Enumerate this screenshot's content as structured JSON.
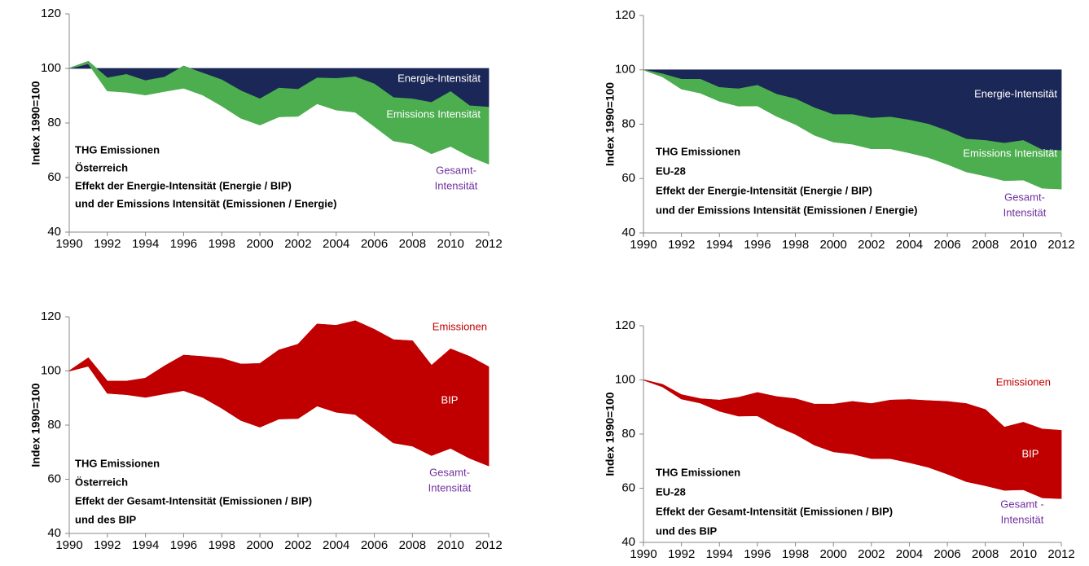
{
  "chart_data": [
    {
      "type": "band-area",
      "ylabel": "Index 1990=100",
      "text_lines": [
        "THG Emissionen",
        "Österreich",
        "Effekt der Energie-Intensität (Energie / BIP)",
        "und der Emissions Intensität (Emissionen / Energie)"
      ],
      "x": [
        1990,
        1991,
        1992,
        1993,
        1994,
        1995,
        1996,
        1997,
        1998,
        1999,
        2000,
        2001,
        2002,
        2003,
        2004,
        2005,
        2006,
        2007,
        2008,
        2009,
        2010,
        2011,
        2012
      ],
      "xlim": [
        1990,
        2012
      ],
      "xticks": [
        1990,
        1992,
        1994,
        1996,
        1998,
        2000,
        2002,
        2004,
        2006,
        2008,
        2010,
        2012
      ],
      "ylim": [
        40,
        120
      ],
      "yticks": [
        40,
        60,
        80,
        100,
        120
      ],
      "baseline": 100,
      "series": [
        {
          "name": "Energie-Intensität",
          "color": "#1b2757",
          "label_color": "#ffffff",
          "values": [
            100,
            102.5,
            96.5,
            97.8,
            95.5,
            96.8,
            100.8,
            98.3,
            95.8,
            91.8,
            88.8,
            92.8,
            92.3,
            96.5,
            96.3,
            96.9,
            94.3,
            89.3,
            88.8,
            87.5,
            91.5,
            86.3,
            85.8
          ]
        },
        {
          "name": "Emissions Intensität",
          "color": "#4cae4f",
          "label_color": "#ffffff",
          "values": [
            100,
            101.8,
            91.8,
            91.3,
            90.3,
            91.6,
            92.8,
            90.3,
            86.3,
            81.8,
            79.3,
            82.3,
            82.5,
            87.1,
            84.8,
            84.0,
            78.8,
            73.5,
            72.3,
            68.8,
            71.5,
            67.8,
            65.0
          ]
        }
      ],
      "labels": [
        {
          "lines": [
            "Gesamt-",
            "Intensität"
          ],
          "color": "#7030a0"
        }
      ]
    },
    {
      "type": "band-area",
      "ylabel": "Index 1990=100",
      "text_lines": [
        "THG Emissionen",
        "EU-28",
        "Effekt der Energie-Intensität (Energie / BIP)",
        "und der Emissions Intensität (Emissionen / Energie)"
      ],
      "x": [
        1990,
        1991,
        1992,
        1993,
        1994,
        1995,
        1996,
        1997,
        1998,
        1999,
        2000,
        2001,
        2002,
        2003,
        2004,
        2005,
        2006,
        2007,
        2008,
        2009,
        2010,
        2011,
        2012
      ],
      "xlim": [
        1990,
        2012
      ],
      "xticks": [
        1990,
        1992,
        1994,
        1996,
        1998,
        2000,
        2002,
        2004,
        2006,
        2008,
        2010,
        2012
      ],
      "ylim": [
        40,
        120
      ],
      "yticks": [
        40,
        60,
        80,
        100,
        120
      ],
      "baseline": 100,
      "series": [
        {
          "name": "Energie-Intensität",
          "color": "#1b2757",
          "label_color": "#ffffff",
          "values": [
            100,
            98.5,
            96.5,
            96.5,
            93.5,
            93,
            94.3,
            91,
            89.3,
            86,
            83.5,
            83.5,
            82.2,
            82.6,
            81.5,
            80,
            77.5,
            74.5,
            74,
            73,
            74,
            70.5,
            70.3
          ]
        },
        {
          "name": "Emissions Intensität",
          "color": "#4cae4f",
          "label_color": "#ffffff",
          "values": [
            100,
            97.5,
            93,
            91.5,
            88.5,
            86.7,
            86.8,
            83,
            80,
            76,
            73.5,
            72.7,
            71,
            71,
            69.5,
            67.8,
            65.3,
            62.5,
            61,
            59.3,
            59.5,
            56.5,
            56.2
          ]
        }
      ],
      "labels": [
        {
          "lines": [
            "Gesamt-",
            "Intensität"
          ],
          "color": "#7030a0"
        }
      ]
    },
    {
      "type": "band-area",
      "ylabel": "Index 1990=100",
      "text_lines": [
        "THG Emissionen",
        "Österreich",
        "Effekt der Gesamt-Intensität (Emissionen / BIP)",
        "und des BIP"
      ],
      "x": [
        1990,
        1991,
        1992,
        1993,
        1994,
        1995,
        1996,
        1997,
        1998,
        1999,
        2000,
        2001,
        2002,
        2003,
        2004,
        2005,
        2006,
        2007,
        2008,
        2009,
        2010,
        2011,
        2012
      ],
      "xlim": [
        1990,
        2012
      ],
      "xticks": [
        1990,
        1992,
        1994,
        1996,
        1998,
        2000,
        2002,
        2004,
        2006,
        2008,
        2010,
        2012
      ],
      "ylim": [
        40,
        120
      ],
      "yticks": [
        40,
        60,
        80,
        100,
        120
      ],
      "series": [
        {
          "name": "Emissionen",
          "color": "#c00000",
          "label_color": "#c00000",
          "values": [
            100,
            104.8,
            96.2,
            96.2,
            97.3,
            101.8,
            105.8,
            105.3,
            104.6,
            102.5,
            102.7,
            107.7,
            109.8,
            117.3,
            116.8,
            118.5,
            115.3,
            111.5,
            111.1,
            102,
            108.1,
            105.3,
            101.5
          ]
        },
        {
          "name": "BIP",
          "color": "#c00000",
          "label_color": "#ffffff",
          "values": [
            100,
            101.8,
            91.8,
            91.3,
            90.3,
            91.6,
            92.8,
            90.3,
            86.3,
            81.8,
            79.3,
            82.3,
            82.5,
            87.1,
            84.8,
            84.0,
            78.8,
            73.5,
            72.3,
            68.8,
            71.5,
            67.8,
            65.0
          ]
        }
      ],
      "labels": [
        {
          "lines": [
            "Gesamt-",
            "Intensität"
          ],
          "color": "#7030a0"
        }
      ]
    },
    {
      "type": "band-area",
      "ylabel": "Index 1990=100",
      "text_lines": [
        "THG Emissionen",
        "EU-28",
        "Effekt der Gesamt-Intensität (Emissionen / BIP)",
        "und des BIP"
      ],
      "x": [
        1990,
        1991,
        1992,
        1993,
        1994,
        1995,
        1996,
        1997,
        1998,
        1999,
        2000,
        2001,
        2002,
        2003,
        2004,
        2005,
        2006,
        2007,
        2008,
        2009,
        2010,
        2011,
        2012
      ],
      "xlim": [
        1990,
        2012
      ],
      "xticks": [
        1990,
        1992,
        1994,
        1996,
        1998,
        2000,
        2002,
        2004,
        2006,
        2008,
        2010,
        2012
      ],
      "ylim": [
        40,
        120
      ],
      "yticks": [
        40,
        60,
        80,
        100,
        120
      ],
      "series": [
        {
          "name": "Emissionen",
          "color": "#c00000",
          "label_color": "#c00000",
          "values": [
            100,
            98.3,
            94.5,
            93,
            92.5,
            93.5,
            95.3,
            93.8,
            93,
            91,
            91,
            92,
            91.2,
            92.5,
            92.7,
            92.3,
            92,
            91.2,
            89,
            82.5,
            84.3,
            81.8,
            81.3
          ]
        },
        {
          "name": "BIP",
          "color": "#c00000",
          "label_color": "#ffffff",
          "values": [
            100,
            97.5,
            93,
            91.5,
            88.5,
            86.7,
            86.8,
            83,
            80,
            76,
            73.5,
            72.7,
            71,
            71,
            69.5,
            67.8,
            65.3,
            62.5,
            61,
            59.3,
            59.5,
            56.5,
            56.2
          ]
        }
      ],
      "labels": [
        {
          "lines": [
            "Gesamt -",
            "Intensität"
          ],
          "color": "#7030a0"
        }
      ]
    }
  ]
}
